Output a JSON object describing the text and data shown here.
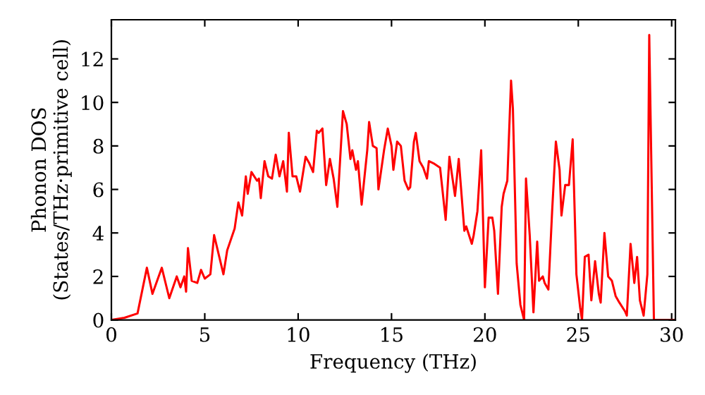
{
  "chart_data": {
    "type": "line",
    "xlabel": "Frequency (THz)",
    "ylabel": "Phonon DOS\n(States/THz·primitive cell)",
    "xlim": [
      0,
      30.2
    ],
    "ylim": [
      0,
      13.8
    ],
    "xticks": [
      0,
      5,
      10,
      15,
      20,
      25,
      30
    ],
    "yticks": [
      0,
      2,
      4,
      6,
      8,
      10,
      12
    ],
    "grid": false,
    "legend": false,
    "marker": "none",
    "line_style": "solid",
    "series": [
      {
        "color": "#ff0000",
        "x": [
          0,
          0.7,
          1.4,
          1.9,
          2.2,
          2.7,
          3.1,
          3.5,
          3.7,
          3.9,
          4.0,
          4.1,
          4.3,
          4.6,
          4.8,
          5.0,
          5.3,
          5.5,
          6.0,
          6.2,
          6.6,
          6.8,
          7.0,
          7.2,
          7.3,
          7.5,
          7.8,
          7.9,
          8.0,
          8.2,
          8.4,
          8.6,
          8.8,
          9.0,
          9.2,
          9.4,
          9.5,
          9.7,
          9.9,
          10.1,
          10.4,
          10.6,
          10.8,
          11.0,
          11.1,
          11.3,
          11.5,
          11.7,
          11.9,
          12.1,
          12.4,
          12.6,
          12.8,
          12.9,
          13.1,
          13.2,
          13.4,
          13.7,
          13.8,
          14.0,
          14.2,
          14.3,
          14.6,
          14.8,
          15.0,
          15.1,
          15.3,
          15.5,
          15.7,
          15.9,
          16.0,
          16.2,
          16.3,
          16.5,
          16.7,
          16.9,
          17.0,
          17.25,
          17.6,
          17.9,
          18.1,
          18.4,
          18.6,
          18.9,
          19.0,
          19.3,
          19.4,
          19.6,
          19.8,
          20.0,
          20.2,
          20.4,
          20.5,
          20.7,
          20.9,
          21.0,
          21.2,
          21.4,
          21.5,
          21.7,
          21.9,
          22.1,
          22.2,
          22.4,
          22.6,
          22.8,
          22.9,
          23.1,
          23.2,
          23.4,
          23.6,
          23.8,
          24.0,
          24.1,
          24.3,
          24.5,
          24.7,
          24.9,
          25.1,
          25.2,
          25.35,
          25.55,
          25.7,
          25.9,
          26.1,
          26.2,
          26.4,
          26.6,
          26.8,
          27.0,
          27.2,
          27.5,
          27.6,
          27.8,
          28.0,
          28.15,
          28.3,
          28.5,
          28.7,
          28.8,
          29.05,
          30.2
        ],
        "values": [
          0,
          0.1,
          0.3,
          2.4,
          1.2,
          2.4,
          1.0,
          2.0,
          1.5,
          2.0,
          1.3,
          3.3,
          1.8,
          1.7,
          2.3,
          1.9,
          2.1,
          3.9,
          2.1,
          3.2,
          4.2,
          5.4,
          4.8,
          6.6,
          5.8,
          6.8,
          6.4,
          6.5,
          5.6,
          7.3,
          6.6,
          6.5,
          7.6,
          6.6,
          7.3,
          5.9,
          8.6,
          6.6,
          6.6,
          5.9,
          7.5,
          7.2,
          6.8,
          8.7,
          8.6,
          8.8,
          6.2,
          7.4,
          6.5,
          5.2,
          9.6,
          9.0,
          7.4,
          7.8,
          6.9,
          7.3,
          5.3,
          7.8,
          9.1,
          8.0,
          7.9,
          6.0,
          7.8,
          8.8,
          8.0,
          6.9,
          8.2,
          8.0,
          6.4,
          6.0,
          6.1,
          8.2,
          8.6,
          7.3,
          7.0,
          6.5,
          7.3,
          7.2,
          7.0,
          4.6,
          7.5,
          5.7,
          7.4,
          4.1,
          4.3,
          3.5,
          3.9,
          5.0,
          7.8,
          1.5,
          4.7,
          4.7,
          4.1,
          1.2,
          5.2,
          5.8,
          6.4,
          11.0,
          9.7,
          2.6,
          0.7,
          0,
          6.5,
          3.9,
          0.35,
          3.6,
          1.8,
          2.0,
          1.7,
          1.4,
          5.0,
          8.2,
          6.9,
          4.8,
          6.2,
          6.2,
          8.3,
          2.1,
          0.57,
          0,
          2.9,
          3.0,
          0.9,
          2.7,
          1.2,
          0.8,
          4.0,
          2.0,
          1.8,
          1.1,
          0.8,
          0.4,
          0.2,
          3.5,
          1.7,
          2.9,
          0.9,
          0.2,
          2.1,
          13.1,
          0,
          0
        ]
      }
    ]
  }
}
